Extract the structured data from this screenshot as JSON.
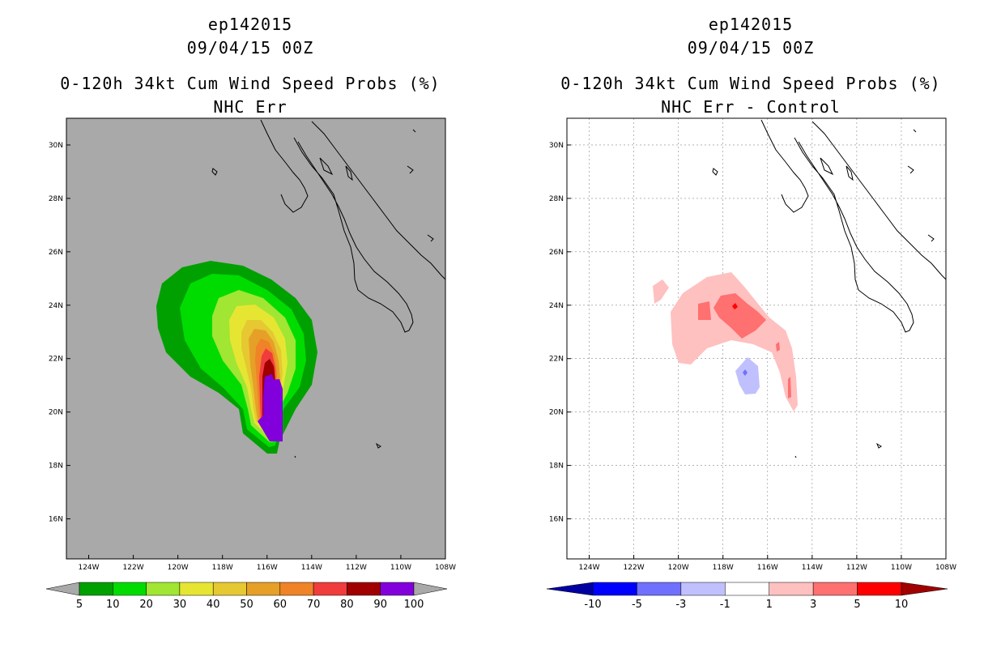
{
  "colors": {
    "ocean_left": "#a9a9a9",
    "ocean_right": "#ffffff",
    "coast": "#000000",
    "prob_scale": [
      "#00a000",
      "#00dc00",
      "#a0e632",
      "#e6e632",
      "#e6c832",
      "#e6a028",
      "#f08228",
      "#f03c3c",
      "#a00000",
      "#8200dc"
    ],
    "diff_scale": [
      "#0000a0",
      "#0000ff",
      "#7070ff",
      "#c0c0ff",
      "#ffffff",
      "#ffc0c0",
      "#ff7070",
      "#ff0000",
      "#a00000"
    ]
  },
  "left_panel": {
    "storm_id": "ep142015",
    "datetime": "09/04/15 00Z",
    "product": "0-120h 34kt Cum Wind Speed Probs (%)",
    "subtitle": "NHC Err",
    "colorbar_labels": [
      "5",
      "10",
      "20",
      "30",
      "40",
      "50",
      "60",
      "70",
      "80",
      "90",
      "100"
    ]
  },
  "right_panel": {
    "storm_id": "ep142015",
    "datetime": "09/04/15 00Z",
    "product": "0-120h 34kt Cum Wind Speed Probs (%)",
    "subtitle": "NHC Err - Control",
    "colorbar_labels": [
      "-10",
      "-5",
      "-3",
      "-1",
      "1",
      "3",
      "5",
      "10"
    ]
  },
  "axes": {
    "lon_labels": [
      "124W",
      "122W",
      "120W",
      "118W",
      "116W",
      "114W",
      "112W",
      "110W",
      "108W"
    ],
    "lat_labels": [
      "30N",
      "28N",
      "26N",
      "24N",
      "22N",
      "20N",
      "18N",
      "16N"
    ]
  }
}
